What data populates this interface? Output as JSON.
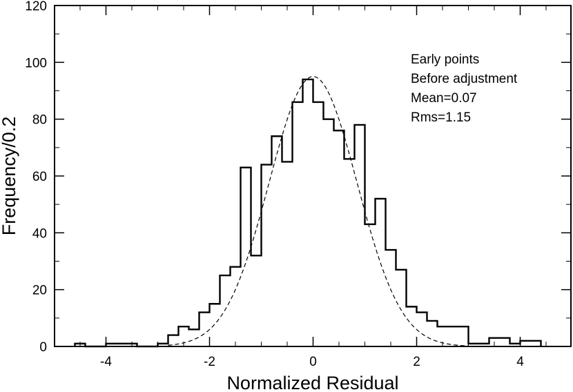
{
  "chart_data": {
    "type": "bar",
    "title": "",
    "xlabel": "Normalized Residual",
    "ylabel": "Frequency/0.2",
    "xlim": [
      -5,
      5
    ],
    "ylim": [
      0,
      120
    ],
    "x_major_ticks": [
      -4,
      -2,
      0,
      2,
      4
    ],
    "x_tick_labels": [
      "-4",
      "-2",
      "0",
      "2",
      "4"
    ],
    "y_major_ticks": [
      0,
      20,
      40,
      60,
      80,
      100,
      120
    ],
    "y_tick_labels": [
      "0",
      "20",
      "40",
      "60",
      "80",
      "100",
      "120"
    ],
    "bin_width": 0.2,
    "series": [
      {
        "name": "histogram",
        "style": "step",
        "bins": [
          {
            "x0": -4.6,
            "x1": -4.4,
            "count": 1
          },
          {
            "x0": -4.4,
            "x1": -4.0,
            "count": 0
          },
          {
            "x0": -4.0,
            "x1": -3.4,
            "count": 1
          },
          {
            "x0": -3.4,
            "x1": -3.0,
            "count": 0
          },
          {
            "x0": -3.0,
            "x1": -2.8,
            "count": 1
          },
          {
            "x0": -2.8,
            "x1": -2.6,
            "count": 4
          },
          {
            "x0": -2.6,
            "x1": -2.4,
            "count": 7
          },
          {
            "x0": -2.4,
            "x1": -2.2,
            "count": 6
          },
          {
            "x0": -2.2,
            "x1": -2.0,
            "count": 12
          },
          {
            "x0": -2.0,
            "x1": -1.8,
            "count": 15
          },
          {
            "x0": -1.8,
            "x1": -1.6,
            "count": 25
          },
          {
            "x0": -1.6,
            "x1": -1.4,
            "count": 28
          },
          {
            "x0": -1.4,
            "x1": -1.2,
            "count": 63
          },
          {
            "x0": -1.2,
            "x1": -1.0,
            "count": 32
          },
          {
            "x0": -1.0,
            "x1": -0.8,
            "count": 64
          },
          {
            "x0": -0.8,
            "x1": -0.6,
            "count": 74
          },
          {
            "x0": -0.6,
            "x1": -0.4,
            "count": 65
          },
          {
            "x0": -0.4,
            "x1": -0.2,
            "count": 86
          },
          {
            "x0": -0.2,
            "x1": 0.0,
            "count": 94
          },
          {
            "x0": 0.0,
            "x1": 0.2,
            "count": 86
          },
          {
            "x0": 0.2,
            "x1": 0.4,
            "count": 80
          },
          {
            "x0": 0.4,
            "x1": 0.6,
            "count": 76
          },
          {
            "x0": 0.6,
            "x1": 0.8,
            "count": 66
          },
          {
            "x0": 0.8,
            "x1": 1.0,
            "count": 78
          },
          {
            "x0": 1.0,
            "x1": 1.2,
            "count": 43
          },
          {
            "x0": 1.2,
            "x1": 1.4,
            "count": 52
          },
          {
            "x0": 1.4,
            "x1": 1.6,
            "count": 34
          },
          {
            "x0": 1.6,
            "x1": 1.8,
            "count": 27
          },
          {
            "x0": 1.8,
            "x1": 2.0,
            "count": 14
          },
          {
            "x0": 2.0,
            "x1": 2.2,
            "count": 12
          },
          {
            "x0": 2.2,
            "x1": 2.4,
            "count": 9
          },
          {
            "x0": 2.4,
            "x1": 3.0,
            "count": 7
          },
          {
            "x0": 3.0,
            "x1": 3.4,
            "count": 1
          },
          {
            "x0": 3.4,
            "x1": 3.8,
            "count": 3
          },
          {
            "x0": 3.8,
            "x1": 4.0,
            "count": 1
          },
          {
            "x0": 4.0,
            "x1": 4.4,
            "count": 2
          }
        ]
      },
      {
        "name": "gaussian fit",
        "style": "dashed",
        "function": "gaussian",
        "amplitude": 95,
        "mean": 0.0,
        "sigma": 0.85
      }
    ],
    "annotations": [
      "Early points",
      "Before adjustment",
      "Mean=0.07",
      "Rms=1.15"
    ],
    "annotation_position": "top-right"
  }
}
